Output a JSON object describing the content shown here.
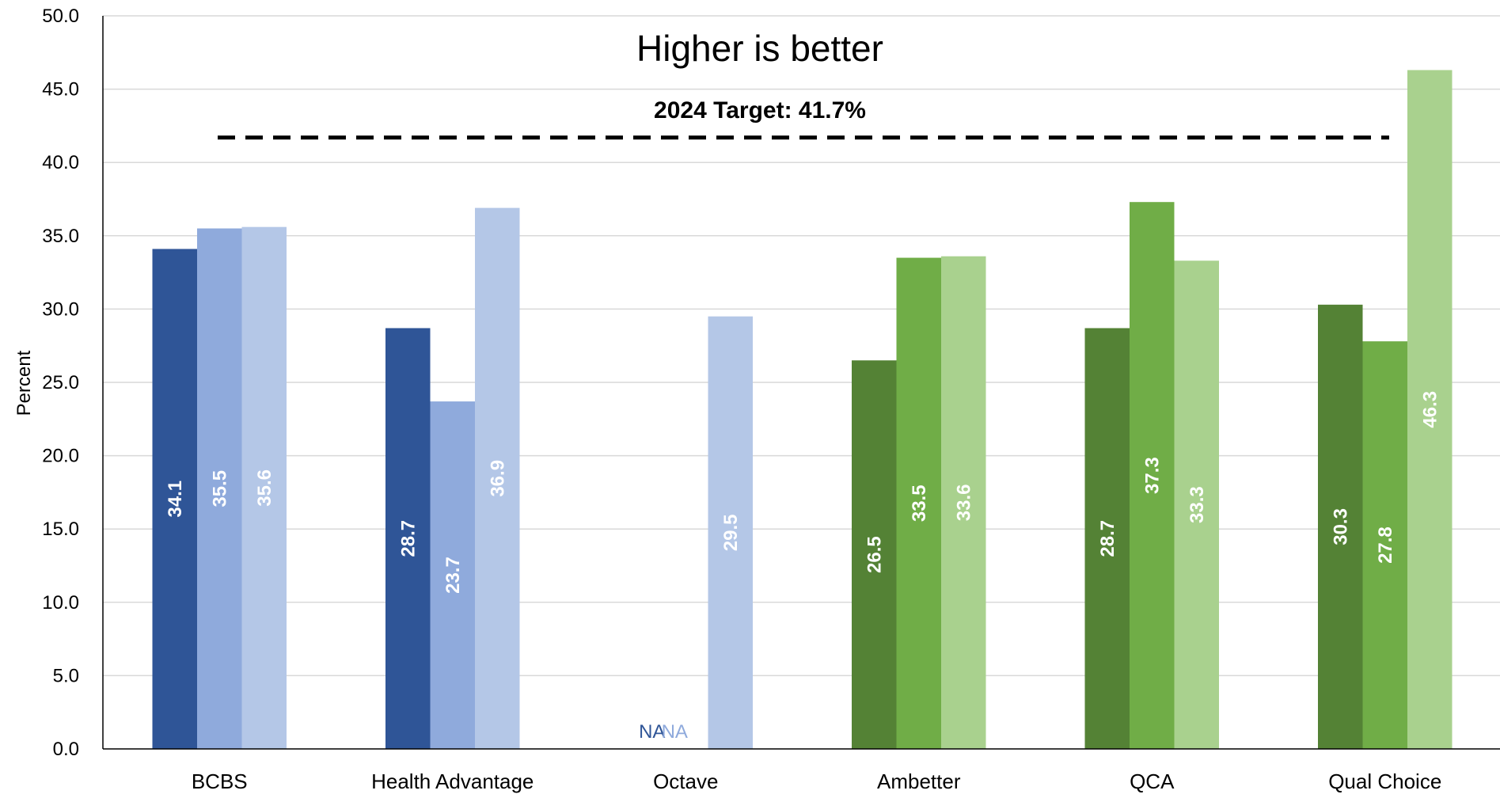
{
  "chart_data": {
    "type": "bar",
    "categories": [
      "BCBS",
      "Health Advantage",
      "Octave",
      "Ambetter",
      "QCA",
      "Qual Choice"
    ],
    "series": [
      {
        "values": [
          34.1,
          28.7,
          null,
          26.5,
          28.7,
          30.3
        ],
        "value_labels": [
          "34.1",
          "28.7",
          "NA",
          "26.5",
          "28.7",
          "30.3"
        ]
      },
      {
        "values": [
          35.5,
          23.7,
          null,
          33.5,
          37.3,
          27.8
        ],
        "value_labels": [
          "35.5",
          "23.7",
          "NA",
          "33.5",
          "37.3",
          "27.8"
        ]
      },
      {
        "values": [
          35.6,
          36.9,
          29.5,
          33.6,
          33.3,
          46.3
        ],
        "value_labels": [
          "35.6",
          "36.9",
          "29.5",
          "33.6",
          "33.3",
          "46.3"
        ]
      }
    ],
    "bar_colors": [
      [
        "#2F5597",
        "#8FAADC",
        "#B4C7E7"
      ],
      [
        "#2F5597",
        "#8FAADC",
        "#B4C7E7"
      ],
      [
        "#2F5597",
        "#8FAADC",
        "#B4C7E7"
      ],
      [
        "#548235",
        "#70AD47",
        "#A9D18E"
      ],
      [
        "#548235",
        "#70AD47",
        "#A9D18E"
      ],
      [
        "#548235",
        "#70AD47",
        "#A9D18E"
      ]
    ],
    "ylabel": "Percent",
    "xlabel": "",
    "ylim": [
      0,
      50
    ],
    "yticks": [
      "0.0",
      "5.0",
      "10.0",
      "15.0",
      "20.0",
      "25.0",
      "30.0",
      "35.0",
      "40.0",
      "45.0",
      "50.0"
    ],
    "grid": true,
    "annotation": "Higher is better",
    "target": {
      "value": 41.7,
      "label": "2024 Target: 41.7%",
      "style": "dashed",
      "color": "#000000"
    }
  }
}
